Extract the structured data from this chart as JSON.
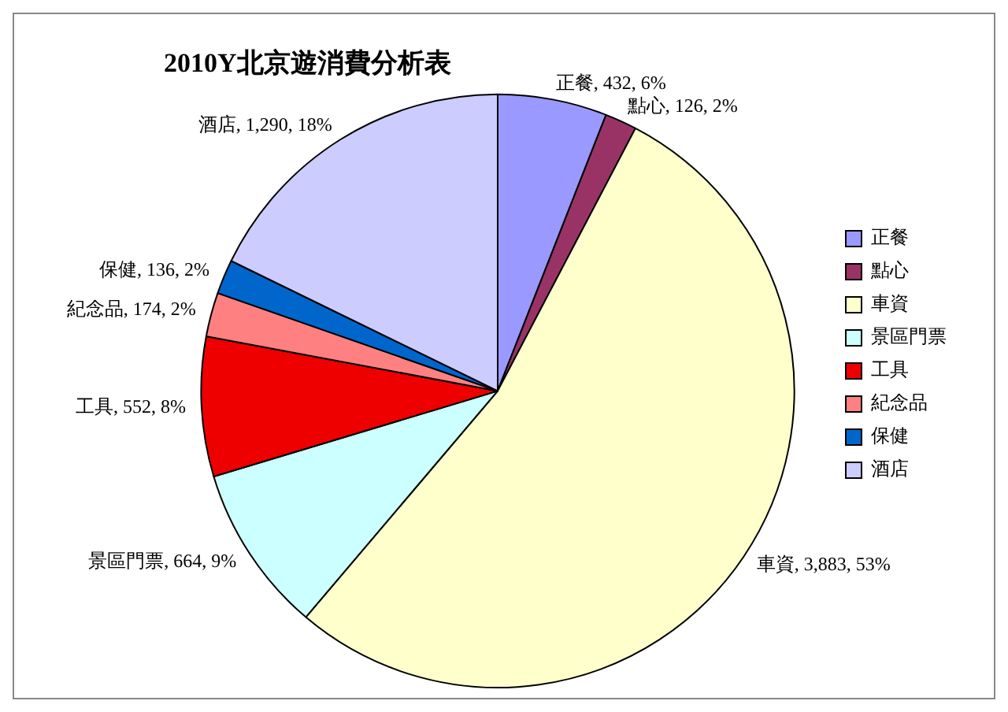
{
  "chart_data": {
    "type": "pie",
    "title": "2010Y北京遊消費分析表",
    "categories": [
      "正餐",
      "點心",
      "車資",
      "景區門票",
      "工具",
      "紀念品",
      "保健",
      "酒店"
    ],
    "values": [
      432,
      126,
      3883,
      664,
      552,
      174,
      136,
      1290
    ],
    "colors": [
      "#9999ff",
      "#993366",
      "#ffffcc",
      "#ccffff",
      "#ee0000",
      "#ff8080",
      "#0066cc",
      "#ccccff"
    ],
    "value_labels": [
      "正餐, 432, 6%",
      "點心, 126, 2%",
      "車資, 3,883, 53%",
      "景區門票, 664, 9%",
      "工具, 552, 8%",
      "紀念品, 174, 2%",
      "保健, 136, 2%",
      "酒店, 1,290, 18%"
    ],
    "legend": "right"
  }
}
